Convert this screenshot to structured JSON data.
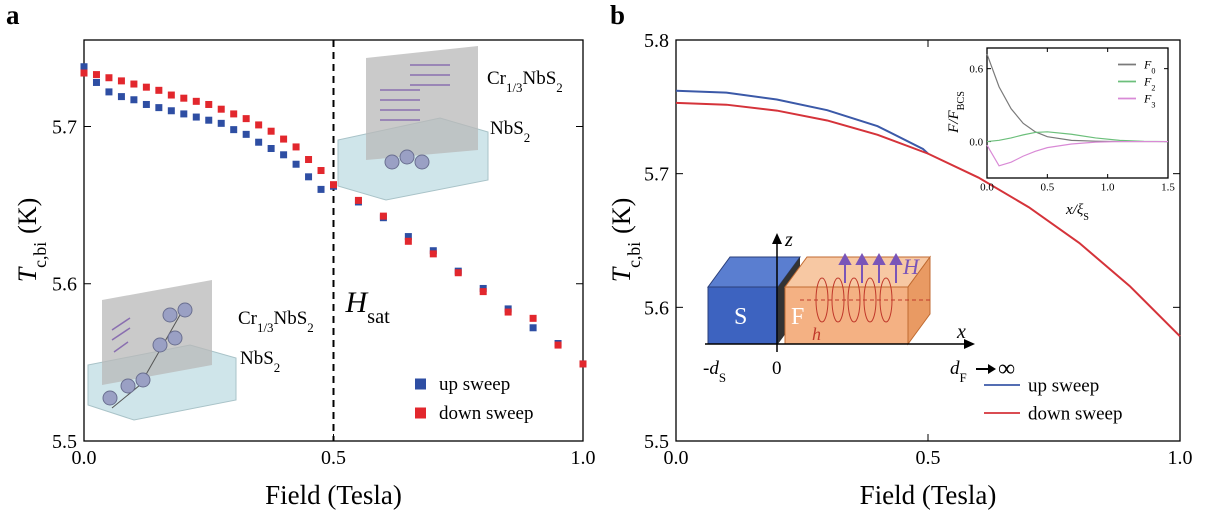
{
  "chart_data": [
    {
      "type": "scatter",
      "panel": "a",
      "xlabel": "Field (Tesla)",
      "ylabel": [
        "T",
        "c,bi",
        "(K)"
      ],
      "xlim": [
        0,
        1
      ],
      "ylim": [
        5.5,
        5.755
      ],
      "xticks": [
        {
          "value": 0,
          "label": "0.0"
        },
        0.5,
        {
          "value": 1,
          "label": "1.0"
        }
      ],
      "yticks": [
        5.5,
        5.6,
        5.7
      ],
      "vline": {
        "x": 0.5,
        "label": [
          "H",
          "sat"
        ]
      },
      "legend": "lower right",
      "annotations": [
        [
          "Cr",
          "1/3",
          "NbS",
          "2"
        ],
        [
          "NbS",
          "2"
        ],
        [
          "Cr",
          "1/3",
          "NbS",
          "2"
        ],
        [
          "NbS",
          "2"
        ]
      ],
      "x": [
        0,
        0.025,
        0.05,
        0.075,
        0.1,
        0.125,
        0.15,
        0.175,
        0.2,
        0.225,
        0.25,
        0.275,
        0.3,
        0.325,
        0.35,
        0.375,
        0.4,
        0.425,
        0.45,
        0.475,
        0.5,
        0.55,
        0.6,
        0.65,
        0.7,
        0.75,
        0.8,
        0.85,
        0.9,
        0.95,
        1.0
      ],
      "series": [
        {
          "name": "up sweep",
          "color": "#2e4ea3",
          "values": [
            5.738,
            5.728,
            5.722,
            5.719,
            5.717,
            5.714,
            5.712,
            5.71,
            5.708,
            5.706,
            5.704,
            5.702,
            5.698,
            5.695,
            5.69,
            5.686,
            5.682,
            5.676,
            5.668,
            5.66,
            5.662,
            5.652,
            5.642,
            5.63,
            5.621,
            5.608,
            5.597,
            5.584,
            5.572,
            5.562,
            5.549
          ]
        },
        {
          "name": "down sweep",
          "color": "#e2272d",
          "values": [
            5.734,
            5.733,
            5.731,
            5.729,
            5.727,
            5.725,
            5.723,
            5.72,
            5.718,
            5.716,
            5.714,
            5.711,
            5.708,
            5.705,
            5.701,
            5.697,
            5.692,
            5.687,
            5.679,
            5.672,
            5.663,
            5.653,
            5.643,
            5.627,
            5.619,
            5.607,
            5.595,
            5.582,
            5.578,
            5.561,
            5.549
          ]
        }
      ]
    },
    {
      "type": "line",
      "panel": "b",
      "xlabel": "Field (Tesla)",
      "ylabel": [
        "T",
        "c,bi",
        "(K)"
      ],
      "xlim": [
        0,
        1
      ],
      "ylim": [
        5.5,
        5.8
      ],
      "xticks": [
        {
          "value": 0,
          "label": "0.0"
        },
        0.5,
        {
          "value": 1,
          "label": "1.0"
        }
      ],
      "yticks": [
        5.5,
        5.6,
        5.7,
        5.8
      ],
      "legend": "lower right",
      "series": [
        {
          "name": "up sweep",
          "color": "#3b59a8",
          "x": [
            0,
            0.1,
            0.2,
            0.3,
            0.4,
            0.49,
            0.5
          ],
          "values": [
            5.762,
            5.7606,
            5.7555,
            5.7475,
            5.7355,
            5.7185,
            5.715
          ]
        },
        {
          "name": "down sweep",
          "color": "#d5333a",
          "x": [
            0,
            0.1,
            0.2,
            0.3,
            0.4,
            0.5,
            0.6,
            0.7,
            0.8,
            0.9,
            1.0
          ],
          "values": [
            5.753,
            5.7516,
            5.7472,
            5.7398,
            5.7291,
            5.715,
            5.6971,
            5.6749,
            5.6482,
            5.616,
            5.5783
          ]
        }
      ],
      "schematic": {
        "S": "S",
        "F": "F",
        "z": "z",
        "x": "x",
        "H": "H",
        "h": "h",
        "left": [
          "-d",
          "S"
        ],
        "zero": "0",
        "right": [
          "d",
          "F"
        ],
        "inf": "∞"
      },
      "inset": {
        "type": "line",
        "xlabel": [
          "x/ξ",
          "S"
        ],
        "ylabel": [
          "F/F",
          "BCS"
        ],
        "xlim": [
          0,
          1.5
        ],
        "ylim": [
          -0.3,
          0.77
        ],
        "xticks": [
          {
            "value": 0,
            "label": "0.0"
          },
          0.5,
          {
            "value": 1,
            "label": "1.0"
          },
          1.5
        ],
        "yticks": [
          {
            "value": 0,
            "label": "0.0"
          },
          0.6
        ],
        "legend": "upper right",
        "x": [
          0,
          0.1,
          0.2,
          0.3,
          0.4,
          0.5,
          0.7,
          0.9,
          1.1,
          1.3,
          1.5
        ],
        "series": [
          {
            "name": [
              "F",
              "0"
            ],
            "color": "#7a7a7a",
            "values": [
              0.72,
              0.45,
              0.27,
              0.15,
              0.08,
              0.04,
              0.01,
              0.003,
              0,
              0,
              0
            ]
          },
          {
            "name": [
              "F",
              "2"
            ],
            "color": "#6cbf7b",
            "values": [
              0,
              0.01,
              0.03,
              0.055,
              0.075,
              0.08,
              0.06,
              0.03,
              0.01,
              0.002,
              0
            ]
          },
          {
            "name": [
              "F",
              "3"
            ],
            "color": "#d98ad6",
            "values": [
              -0.03,
              -0.2,
              -0.17,
              -0.12,
              -0.08,
              -0.05,
              -0.02,
              -0.005,
              0,
              0,
              0
            ]
          }
        ]
      }
    }
  ]
}
